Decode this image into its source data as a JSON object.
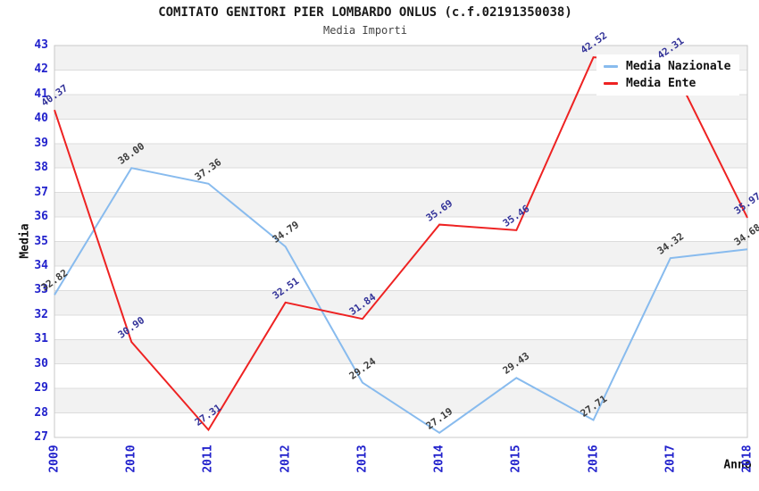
{
  "header": {
    "title": "COMITATO GENITORI PIER LOMBARDO ONLUS (c.f.02191350038)",
    "subtitle": "Media Importi"
  },
  "chart_data": {
    "type": "line",
    "title": "COMITATO GENITORI PIER LOMBARDO ONLUS (c.f.02191350038)",
    "subtitle": "Media Importi",
    "xlabel": "Anno",
    "ylabel": "Media",
    "categories": [
      "2009",
      "2010",
      "2011",
      "2012",
      "2013",
      "2014",
      "2015",
      "2016",
      "2017",
      "2018"
    ],
    "series": [
      {
        "name": "Media Nazionale",
        "color": "#88BBEE",
        "label_color": "#3C3C3C",
        "values": [
          32.82,
          38.0,
          37.36,
          34.79,
          29.24,
          27.19,
          29.43,
          27.71,
          34.32,
          34.68
        ]
      },
      {
        "name": "Media Ente",
        "color": "#EE2222",
        "label_color": "#333399",
        "values": [
          40.37,
          30.9,
          27.31,
          32.51,
          31.84,
          35.69,
          35.46,
          42.52,
          42.31,
          35.97
        ]
      }
    ],
    "ylim": [
      27,
      43
    ],
    "ytick_step": 1,
    "grid": "horizontal",
    "band_colors": [
      "#F2F2F2",
      "#FFFFFF"
    ],
    "gridline_color": "#DCDCDC",
    "plot_border_color": "#C8C8C8",
    "axis_tick_label_color": "#2222CC",
    "legend_position": "top-right",
    "value_label_decimals": 2
  }
}
